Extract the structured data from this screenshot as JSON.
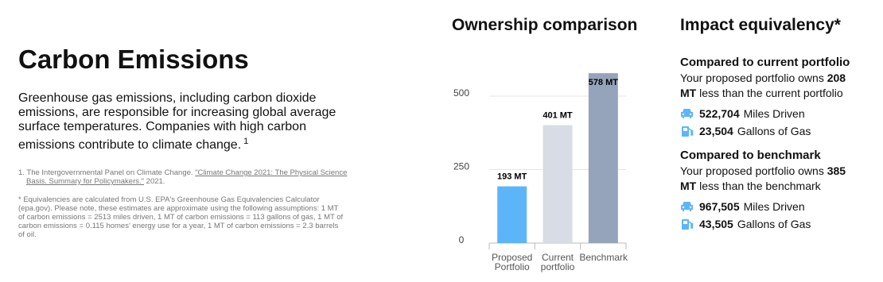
{
  "left": {
    "title": "Carbon Emissions",
    "description": "Greenhouse gas emissions, including carbon dioxide emissions, are responsible for increasing global average surface temperatures. Companies with high carbon emissions contribute to climate change.",
    "description_sup": "1",
    "footnote": {
      "number": "1.",
      "text": "The Intergovernmental Panel on Climate Change.",
      "link": "\"Climate Change 2021: The Physical Science Basis. Summary for Policymakers.\"",
      "year": "2021."
    },
    "note": "* Equivalencies are calculated from U.S. EPA's Greenhouse Gas Equivalencies Calculator (epa.gov). Please note, these estimates are approximate using the following assumptions: 1 MT of carbon emissions = 2513 miles driven, 1 MT of carbon emissions = 113 gallons of gas, 1 MT of carbon emissions = 0.115 homes' energy use for a year, 1 MT of carbon emissions = 2.3 barrels of oil."
  },
  "chart_data": {
    "type": "bar",
    "title": "Ownership comparison",
    "categories": [
      "Proposed Portfolio",
      "Current portfolio",
      "Benchmark"
    ],
    "values": [
      193,
      401,
      578
    ],
    "value_labels": [
      "193 MT",
      "401 MT",
      "578 MT"
    ],
    "colors": [
      "#5db5f9",
      "#d7dce5",
      "#95a4bb"
    ],
    "ylim": [
      0,
      600
    ],
    "yticks": [
      0,
      250,
      500
    ],
    "grid": true
  },
  "impact": {
    "title": "Impact equivalency*",
    "sections": [
      {
        "heading": "Compared to current portfolio",
        "text_before": "Your proposed portfolio owns",
        "amount": "208 MT",
        "text_after": "less than the current portfolio",
        "items": [
          {
            "value": "522,704",
            "label": "Miles Driven"
          },
          {
            "value": "23,504",
            "label": "Gallons of Gas"
          }
        ]
      },
      {
        "heading": "Compared to benchmark",
        "text_before": "Your proposed portfolio owns",
        "amount": "385 MT",
        "text_after": "less than the benchmark",
        "items": [
          {
            "value": "967,505",
            "label": "Miles Driven"
          },
          {
            "value": "43,505",
            "label": "Gallons of Gas"
          }
        ]
      }
    ]
  }
}
